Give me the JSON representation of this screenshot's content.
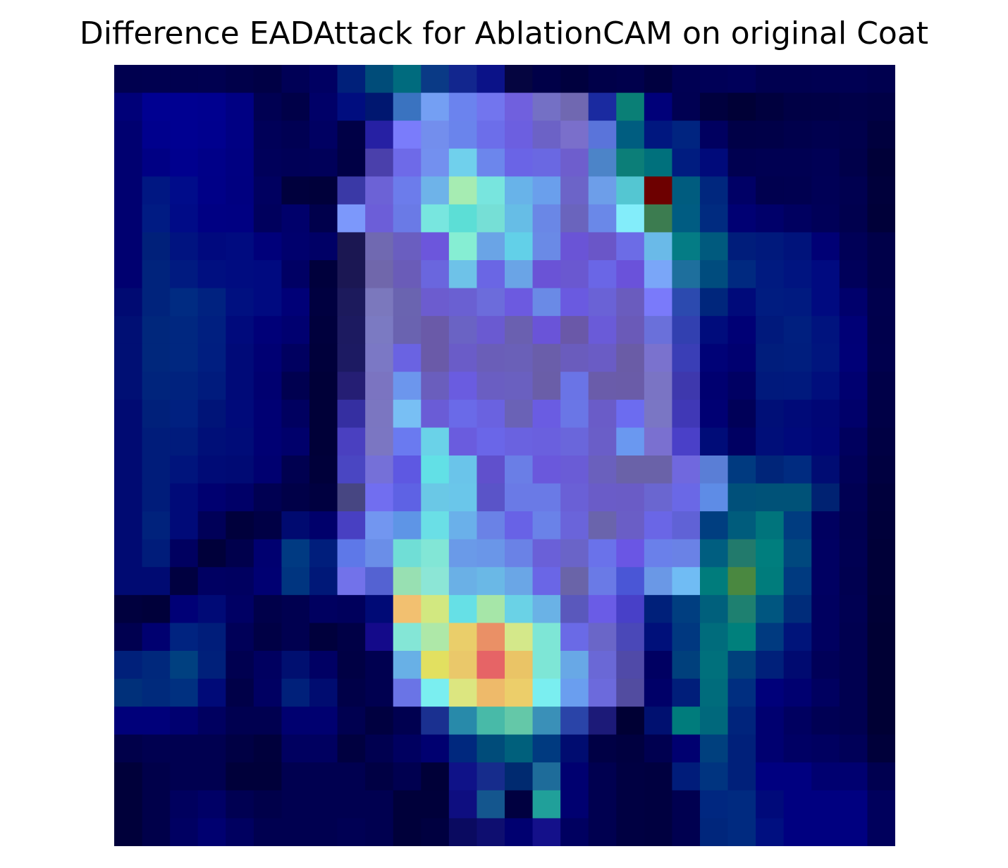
{
  "chart_data": {
    "type": "heatmap",
    "title": "Difference EADAttack for AblationCAM on original Coat",
    "xlabel": "",
    "ylabel": "",
    "axes_visible": false,
    "grid": false,
    "colorbar": false,
    "colormap_note": "jet-colored attribution overlaid on dark navy background",
    "n_rows": 28,
    "n_cols": 28,
    "cells": [
      [
        "#00004f",
        "#000050",
        "#00004f",
        "#000050",
        "#00004a",
        "#000045",
        "#000056",
        "#000062",
        "#00207a",
        "#004c79",
        "#006b7e",
        "#0a3a86",
        "#12268e",
        "#0b1288",
        "#050540",
        "#000048",
        "#00003e",
        "#000049",
        "#00004c",
        "#000040",
        "#000053",
        "#000057",
        "#00005a",
        "#000050",
        "#000050",
        "#000052",
        "#000053",
        "#00004f"
      ],
      [
        "#000078",
        "#000091",
        "#000091",
        "#00008f",
        "#000083",
        "#000052",
        "#000048",
        "#000068",
        "#000d7f",
        "#001770",
        "#3a73c0",
        "#749ff3",
        "#6b83ee",
        "#7275ee",
        "#7060de",
        "#7470c5",
        "#7068b1",
        "#1a2aa0",
        "#0a7f76",
        "#000079",
        "#000052",
        "#00003e",
        "#000036",
        "#00003e",
        "#000045",
        "#000046",
        "#000049",
        "#000046"
      ],
      [
        "#000070",
        "#00008d",
        "#000091",
        "#00008e",
        "#000083",
        "#000058",
        "#000053",
        "#000062",
        "#000046",
        "#2620a3",
        "#7a7cfb",
        "#738eed",
        "#6a84ec",
        "#6c6eea",
        "#6c5fe0",
        "#6c62c6",
        "#7a6fcb",
        "#5a74da",
        "#005d80",
        "#00177f",
        "#002480",
        "#000060",
        "#000047",
        "#000048",
        "#00004c",
        "#00004f",
        "#00004c",
        "#00003e"
      ],
      [
        "#000070",
        "#000084",
        "#00008e",
        "#000088",
        "#000081",
        "#00005a",
        "#000057",
        "#000059",
        "#000045",
        "#4a40ab",
        "#6e6ae8",
        "#7390ef",
        "#70d0ec",
        "#6c86ec",
        "#6a64e6",
        "#6a68e2",
        "#6e5ecd",
        "#4c84c8",
        "#0c7e78",
        "#00707c",
        "#001c80",
        "#000a7a",
        "#000050",
        "#000052",
        "#000052",
        "#000055",
        "#00004a",
        "#000038"
      ],
      [
        "#000070",
        "#001782",
        "#000c8a",
        "#000087",
        "#000080",
        "#000060",
        "#00003d",
        "#00003a",
        "#3a39a6",
        "#6c62d6",
        "#6c7ceb",
        "#6eb3e9",
        "#a6ecb2",
        "#78e5de",
        "#68b3e9",
        "#6a9fec",
        "#6c64c8",
        "#6d9ee9",
        "#54c6d2",
        "#6d0000",
        "#005c7f",
        "#00277e",
        "#000066",
        "#00004f",
        "#000050",
        "#000056",
        "#000050",
        "#00003b"
      ],
      [
        "#000070",
        "#001b83",
        "#000b87",
        "#000083",
        "#000082",
        "#00005d",
        "#00006b",
        "#00004c",
        "#7c98fb",
        "#6c5ed8",
        "#6a7ae6",
        "#78e6df",
        "#5cded6",
        "#76dfd6",
        "#66bde6",
        "#6a87e6",
        "#6a64bd",
        "#6a88e8",
        "#83edfa",
        "#3c7c50",
        "#005c82",
        "#002b80",
        "#000073",
        "#00006a",
        "#000060",
        "#000058",
        "#00004e",
        "#000039"
      ],
      [
        "#000070",
        "#00207a",
        "#001380",
        "#00097e",
        "#000b80",
        "#00007a",
        "#00006d",
        "#000066",
        "#1b1752",
        "#7069b1",
        "#6a5ec0",
        "#6c56dc",
        "#86eed3",
        "#6aa4e6",
        "#62d0e8",
        "#6a8ae6",
        "#6a54d6",
        "#6a56c8",
        "#6c6ce6",
        "#6abae8",
        "#047c85",
        "#005a7e",
        "#001d7b",
        "#00197c",
        "#00137b",
        "#000075",
        "#000057",
        "#000049"
      ],
      [
        "#000070",
        "#00237c",
        "#001a80",
        "#000f80",
        "#000c80",
        "#000a80",
        "#000064",
        "#00003c",
        "#1b1753",
        "#7067ab",
        "#6a5cb8",
        "#6a66de",
        "#6ec2e8",
        "#6a66e4",
        "#6aa4e6",
        "#6a53d6",
        "#6a58d0",
        "#6a66e6",
        "#6a52da",
        "#7aa6f8",
        "#1e6f9d",
        "#004c7e",
        "#002980",
        "#001a80",
        "#001480",
        "#000a80",
        "#00005a",
        "#000049"
      ],
      [
        "#000a72",
        "#00237c",
        "#002b82",
        "#002280",
        "#001080",
        "#000a80",
        "#000077",
        "#000040",
        "#1c1a5c",
        "#7b78bd",
        "#6a64b0",
        "#6c5ccf",
        "#6a60d2",
        "#6c6cdb",
        "#6c5ae0",
        "#6a8ae6",
        "#6a5ae0",
        "#6a62d6",
        "#6a5cbe",
        "#7a7afa",
        "#2c4aaf",
        "#00267c",
        "#000a7a",
        "#001c80",
        "#001a80",
        "#000a80",
        "#00006c",
        "#00004d"
      ],
      [
        "#000f74",
        "#00277c",
        "#002780",
        "#001f80",
        "#000a7c",
        "#000078",
        "#000070",
        "#00003d",
        "#1c1a60",
        "#7b7ac2",
        "#6a63b0",
        "#6a5aa8",
        "#6a63c4",
        "#6a5ad1",
        "#6a60b0",
        "#6a54d8",
        "#6a58a8",
        "#6a5bd8",
        "#6a5ab8",
        "#6a70da",
        "#3240b0",
        "#000c7c",
        "#000075",
        "#00197c",
        "#001f7f",
        "#00137e",
        "#000076",
        "#00004c"
      ],
      [
        "#000f74",
        "#00277c",
        "#002780",
        "#001e80",
        "#000a78",
        "#000073",
        "#000060",
        "#00003b",
        "#1c1a62",
        "#7b78c5",
        "#6a63e2",
        "#6a5aa8",
        "#6a5cc8",
        "#6a5eb8",
        "#6a60b8",
        "#6a5eaa",
        "#6a5cbd",
        "#6a5cc5",
        "#6a5ca6",
        "#7a72ce",
        "#3a3eb6",
        "#000277",
        "#000070",
        "#001d7c",
        "#001e7e",
        "#00157e",
        "#000077",
        "#00004d"
      ],
      [
        "#000f74",
        "#00247c",
        "#00227e",
        "#001b7d",
        "#000a78",
        "#000070",
        "#000050",
        "#000038",
        "#251e74",
        "#7b74c1",
        "#6c96ed",
        "#6a5ebd",
        "#6a5ce0",
        "#6a5ec2",
        "#6a60c0",
        "#6a5ea8",
        "#6a74e6",
        "#6a5caa",
        "#6a5ca8",
        "#7a74c4",
        "#3e38ad",
        "#000070",
        "#000063",
        "#00197c",
        "#00197d",
        "#000e7c",
        "#000070",
        "#000048"
      ],
      [
        "#000a72",
        "#00207a",
        "#002080",
        "#001478",
        "#000a7a",
        "#000073",
        "#000060",
        "#000038",
        "#352fa1",
        "#7b76c1",
        "#78bff4",
        "#6a5cd6",
        "#6a6ae8",
        "#6a62e0",
        "#6a62b6",
        "#6a5ce2",
        "#6a76e6",
        "#6a5cc8",
        "#6c6cf0",
        "#7a76c4",
        "#4038b6",
        "#000073",
        "#000058",
        "#000f77",
        "#000a78",
        "#000675",
        "#00006a",
        "#000046"
      ],
      [
        "#000a72",
        "#001c7a",
        "#001b7c",
        "#000f78",
        "#000c78",
        "#000073",
        "#00006b",
        "#000038",
        "#4a40c0",
        "#7b76c2",
        "#6a7af0",
        "#6ad2e8",
        "#6a5cde",
        "#6a66e8",
        "#6a62e0",
        "#6a60de",
        "#6a66db",
        "#6a5ec8",
        "#6a98f0",
        "#7a70d0",
        "#4a40c8",
        "#000c78",
        "#000062",
        "#000e79",
        "#00097b",
        "#000577",
        "#00005e",
        "#000043"
      ],
      [
        "#000a72",
        "#001c7a",
        "#00147c",
        "#000b76",
        "#000a74",
        "#000070",
        "#000050",
        "#00003a",
        "#4a46c2",
        "#7570d8",
        "#5e58e2",
        "#62e0e6",
        "#6ac4ea",
        "#6050cc",
        "#6a7ee6",
        "#6a58dc",
        "#6a5cd6",
        "#6a60bd",
        "#6a62a8",
        "#6a62a8",
        "#7068de",
        "#5a7ed6",
        "#003a80",
        "#002579",
        "#002b80",
        "#000c73",
        "#000058",
        "#000040"
      ],
      [
        "#000a72",
        "#001c7a",
        "#000a78",
        "#000070",
        "#000068",
        "#000052",
        "#000048",
        "#000040",
        "#474682",
        "#716ef0",
        "#5e62e4",
        "#6ac8e6",
        "#6ac6ea",
        "#5a54c8",
        "#6a7ae6",
        "#6a7ae6",
        "#6a60d6",
        "#6a5cc8",
        "#6a5cc6",
        "#6a66d0",
        "#6a68e6",
        "#5e8ce6",
        "#00507a",
        "#005278",
        "#005278",
        "#002272",
        "#000053",
        "#00003c"
      ],
      [
        "#000a72",
        "#00227c",
        "#000a78",
        "#000058",
        "#00003c",
        "#000045",
        "#000a70",
        "#00006b",
        "#4840c2",
        "#7296f0",
        "#5e95e6",
        "#6adfe6",
        "#6ab0ea",
        "#6a82e6",
        "#6862e6",
        "#6a82e8",
        "#6a64da",
        "#6a64ac",
        "#6a5ec6",
        "#6a66e6",
        "#6062d6",
        "#003e80",
        "#005c7c",
        "#00747c",
        "#003c80",
        "#000060",
        "#000050",
        "#00003a"
      ],
      [
        "#000a72",
        "#001c7a",
        "#000060",
        "#00003a",
        "#00004c",
        "#000070",
        "#003a82",
        "#001e7c",
        "#5e78e8",
        "#6a8ee8",
        "#70ded6",
        "#82e6d6",
        "#6a9ae8",
        "#6a96e8",
        "#6a82e6",
        "#6a60d8",
        "#6a64c8",
        "#6a72ea",
        "#6a56e4",
        "#6a80ea",
        "#6a82e6",
        "#005e80",
        "#227a6c",
        "#007e7e",
        "#00487e",
        "#000062",
        "#000052",
        "#000038"
      ],
      [
        "#000a72",
        "#000a72",
        "#000040",
        "#000062",
        "#000060",
        "#000072",
        "#003580",
        "#001878",
        "#7272ea",
        "#5462d2",
        "#98e0b2",
        "#8ce6d6",
        "#6ab0e6",
        "#6ab8e6",
        "#6aa6e6",
        "#6a66e6",
        "#6a64a8",
        "#6a7ae6",
        "#4a56d6",
        "#6a98e6",
        "#70bcf4",
        "#007c7c",
        "#4a8840",
        "#007c7c",
        "#003a80",
        "#000062",
        "#000050",
        "#000038"
      ],
      [
        "#00003e",
        "#00003a",
        "#000076",
        "#000a76",
        "#000064",
        "#00004a",
        "#000050",
        "#000060",
        "#00005c",
        "#000a76",
        "#f2c070",
        "#d2e880",
        "#66e0e6",
        "#a6e6a8",
        "#6ad2e6",
        "#6ab2e6",
        "#5a58bc",
        "#6a5ce6",
        "#4840c8",
        "#00207a",
        "#003e80",
        "#00607c",
        "#1e8070",
        "#005680",
        "#002c7a",
        "#000060",
        "#000052",
        "#000036"
      ],
      [
        "#000050",
        "#000070",
        "#002380",
        "#001d7a",
        "#000058",
        "#000045",
        "#000050",
        "#00003c",
        "#000046",
        "#140a8a",
        "#84e6d6",
        "#aee8a8",
        "#eace6a",
        "#ea9066",
        "#d4e88a",
        "#7ee6d6",
        "#6a6ae6",
        "#6a66c8",
        "#4a48b8",
        "#00107a",
        "#003880",
        "#006c7c",
        "#00807c",
        "#003a80",
        "#00147a",
        "#000060",
        "#000050",
        "#000034"
      ],
      [
        "#00207a",
        "#00287c",
        "#004080",
        "#00207a",
        "#000050",
        "#000060",
        "#000f70",
        "#000064",
        "#000044",
        "#000050",
        "#68b0e6",
        "#e2e060",
        "#eac86a",
        "#e66466",
        "#eac466",
        "#7ee6d6",
        "#68a8e6",
        "#6a68d6",
        "#504aa8",
        "#000062",
        "#00407c",
        "#00707c",
        "#00407c",
        "#00207a",
        "#000a70",
        "#000058",
        "#000050",
        "#000034"
      ],
      [
        "#00307a",
        "#002a7c",
        "#003080",
        "#000a78",
        "#000048",
        "#000062",
        "#00207a",
        "#000c70",
        "#000048",
        "#000050",
        "#6a74e6",
        "#7aeef0",
        "#dce680",
        "#eeba6a",
        "#ecce6a",
        "#7aeef0",
        "#6a9eef",
        "#6c6adc",
        "#524ca0",
        "#000068",
        "#001e7a",
        "#006c7c",
        "#002e80",
        "#00007a",
        "#000070",
        "#000060",
        "#000050",
        "#000034"
      ],
      [
        "#00007a",
        "#00007a",
        "#000070",
        "#000060",
        "#000050",
        "#000050",
        "#000070",
        "#000070",
        "#000050",
        "#000040",
        "#000050",
        "#1a3090",
        "#288aaa",
        "#48baa8",
        "#64c8a8",
        "#3a90b8",
        "#2a44a8",
        "#1c1a78",
        "#000034",
        "#001070",
        "#007c7c",
        "#00687c",
        "#00247c",
        "#000070",
        "#000060",
        "#000054",
        "#000050",
        "#000034"
      ],
      [
        "#00004a",
        "#000050",
        "#000050",
        "#000050",
        "#000044",
        "#00003c",
        "#000060",
        "#000060",
        "#000040",
        "#000050",
        "#000060",
        "#000070",
        "#00287e",
        "#004c7a",
        "#00607c",
        "#003a80",
        "#000c70",
        "#000045",
        "#000040",
        "#000050",
        "#000070",
        "#00407e",
        "#00207a",
        "#000070",
        "#000064",
        "#000060",
        "#000058",
        "#00003a"
      ],
      [
        "#00003a",
        "#00004a",
        "#000050",
        "#000050",
        "#00003a",
        "#00003a",
        "#000050",
        "#000050",
        "#000050",
        "#000044",
        "#000050",
        "#000038",
        "#0f1288",
        "#162c8c",
        "#002a70",
        "#1e6c9a",
        "#000070",
        "#000050",
        "#000042",
        "#000040",
        "#001c7a",
        "#003480",
        "#00207a",
        "#000080",
        "#000080",
        "#000070",
        "#000070",
        "#000050"
      ],
      [
        "#00003a",
        "#00004a",
        "#00005e",
        "#000066",
        "#000052",
        "#00004a",
        "#000050",
        "#000050",
        "#000050",
        "#000050",
        "#00003a",
        "#00003a",
        "#0e0e80",
        "#14568e",
        "#000040",
        "#20a09a",
        "#000070",
        "#000050",
        "#000042",
        "#000040",
        "#000050",
        "#002780",
        "#002a80",
        "#000a7a",
        "#000080",
        "#000080",
        "#000080",
        "#00005c"
      ],
      [
        "#00003a",
        "#00004a",
        "#000062",
        "#000070",
        "#000060",
        "#000050",
        "#000050",
        "#000050",
        "#000054",
        "#000050",
        "#00003a",
        "#000040",
        "#0a0a60",
        "#0e0e70",
        "#000070",
        "#14108a",
        "#000060",
        "#000050",
        "#000042",
        "#000040",
        "#000050",
        "#00267c",
        "#002a80",
        "#000f80",
        "#000080",
        "#000080",
        "#000080",
        "#00005c"
      ]
    ]
  }
}
